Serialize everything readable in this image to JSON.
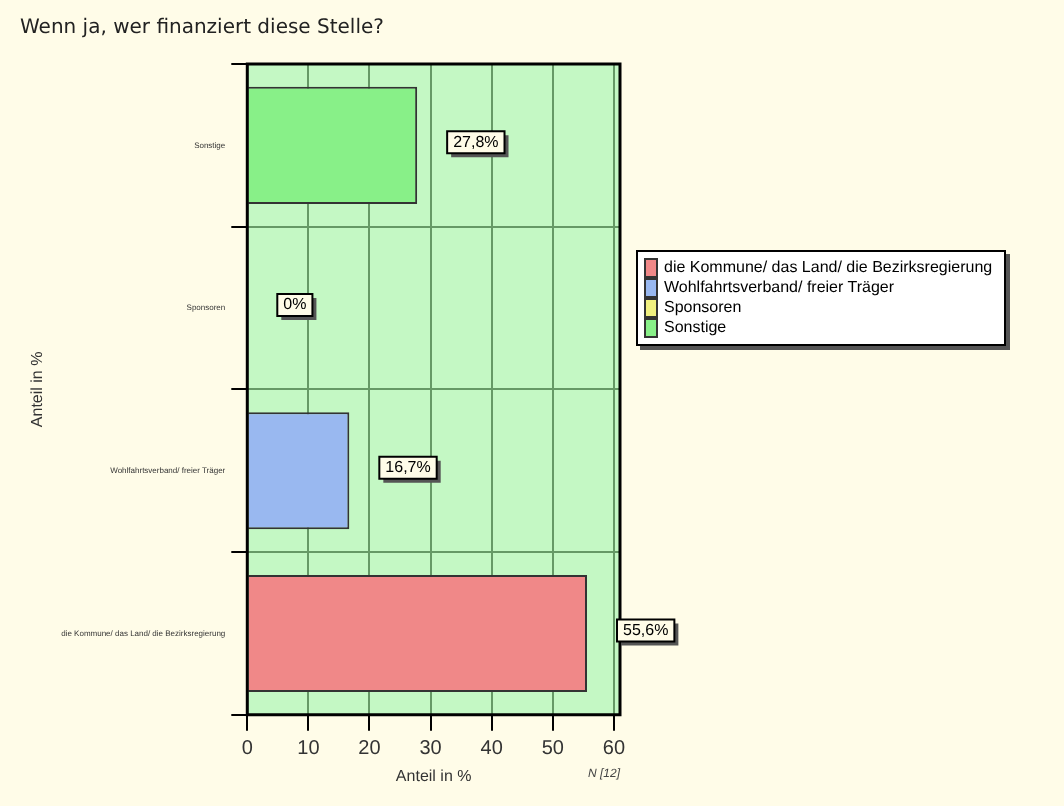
{
  "chart_data": {
    "type": "bar",
    "orientation": "horizontal",
    "title": "Wenn ja, wer finanziert diese Stelle?",
    "xlabel": "Anteil in %",
    "ylabel": "Anteil in %",
    "categories": [
      "Sonstige",
      "Sponsoren",
      "Wohlfahrtsverband/ freier Träger",
      "die Kommune/ das Land/ die Bezirksregierung"
    ],
    "series": [
      {
        "name": "die Kommune/ das Land/ die Bezirksregierung",
        "color": "#f08888",
        "values": [
          null,
          null,
          null,
          55.6
        ],
        "value_labels": [
          null,
          null,
          null,
          "55,6%"
        ]
      },
      {
        "name": "Wohlfahrtsverband/ freier Träger",
        "color": "#99b8f0",
        "values": [
          null,
          null,
          16.7,
          null
        ],
        "value_labels": [
          null,
          null,
          "16,7%",
          null
        ]
      },
      {
        "name": "Sponsoren",
        "color": "#f0f080",
        "values": [
          null,
          0,
          null,
          null
        ],
        "value_labels": [
          null,
          "0%",
          null,
          null
        ]
      },
      {
        "name": "Sonstige",
        "color": "#88f088",
        "values": [
          27.8,
          null,
          null,
          null
        ],
        "value_labels": [
          "27,8%",
          null,
          null,
          null
        ]
      }
    ],
    "xlim": [
      0,
      61
    ],
    "xticks": [
      0,
      10,
      20,
      30,
      40,
      50,
      60
    ],
    "grid": true,
    "legend": "right",
    "annotations": [
      "N [12]"
    ]
  }
}
